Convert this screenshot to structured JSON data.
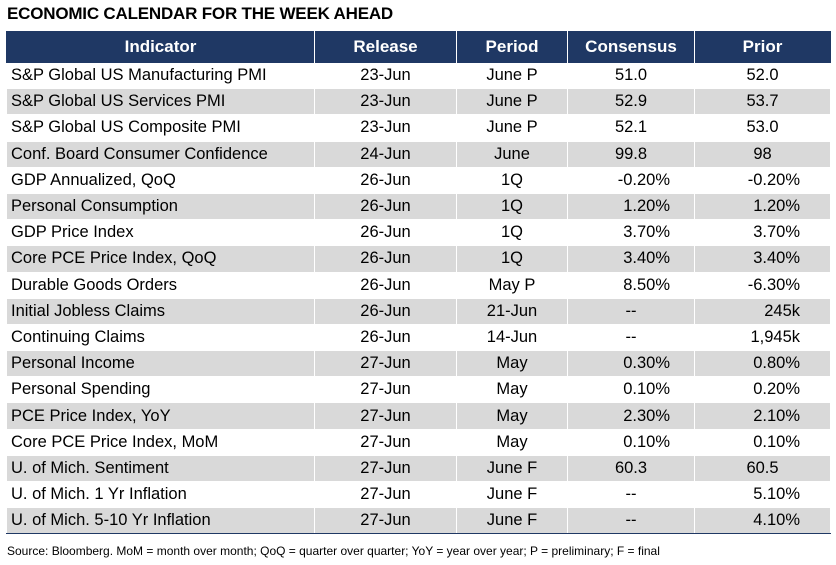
{
  "title": "ECONOMIC CALENDAR FOR THE WEEK AHEAD",
  "columns": [
    "Indicator",
    "Release",
    "Period",
    "Consensus",
    "Prior"
  ],
  "rows": [
    {
      "indicator": "S&P Global US Manufacturing PMI",
      "release": "23-Jun",
      "period": "June P",
      "consensus": "51.0",
      "prior": "52.0"
    },
    {
      "indicator": "S&P Global US Services PMI",
      "release": "23-Jun",
      "period": "June P",
      "consensus": "52.9",
      "prior": "53.7"
    },
    {
      "indicator": "S&P Global US Composite PMI",
      "release": "23-Jun",
      "period": "June P",
      "consensus": "52.1",
      "prior": "53.0"
    },
    {
      "indicator": "Conf. Board Consumer Confidence",
      "release": "24-Jun",
      "period": "June",
      "consensus": "99.8",
      "prior": "98"
    },
    {
      "indicator": "GDP Annualized, QoQ",
      "release": "26-Jun",
      "period": "1Q",
      "consensus": "-0.20%",
      "prior": "-0.20%"
    },
    {
      "indicator": "Personal Consumption",
      "release": "26-Jun",
      "period": "1Q",
      "consensus": "1.20%",
      "prior": "1.20%"
    },
    {
      "indicator": "GDP Price Index",
      "release": "26-Jun",
      "period": "1Q",
      "consensus": "3.70%",
      "prior": "3.70%"
    },
    {
      "indicator": "Core PCE Price Index, QoQ",
      "release": "26-Jun",
      "period": "1Q",
      "consensus": "3.40%",
      "prior": "3.40%"
    },
    {
      "indicator": "Durable Goods Orders",
      "release": "26-Jun",
      "period": "May P",
      "consensus": "8.50%",
      "prior": "-6.30%"
    },
    {
      "indicator": "Initial Jobless Claims",
      "release": "26-Jun",
      "period": "21-Jun",
      "consensus": "--",
      "prior": "245k"
    },
    {
      "indicator": "Continuing Claims",
      "release": "26-Jun",
      "period": "14-Jun",
      "consensus": "--",
      "prior": "1,945k"
    },
    {
      "indicator": "Personal Income",
      "release": "27-Jun",
      "period": "May",
      "consensus": "0.30%",
      "prior": "0.80%"
    },
    {
      "indicator": "Personal Spending",
      "release": "27-Jun",
      "period": "May",
      "consensus": "0.10%",
      "prior": "0.20%"
    },
    {
      "indicator": "PCE Price Index, YoY",
      "release": "27-Jun",
      "period": "May",
      "consensus": "2.30%",
      "prior": "2.10%"
    },
    {
      "indicator": "Core PCE Price Index, MoM",
      "release": "27-Jun",
      "period": "May",
      "consensus": "0.10%",
      "prior": "0.10%"
    },
    {
      "indicator": "U. of Mich. Sentiment",
      "release": "27-Jun",
      "period": "June F",
      "consensus": "60.3",
      "prior": "60.5"
    },
    {
      "indicator": "U. of Mich. 1 Yr Inflation",
      "release": "27-Jun",
      "period": "June F",
      "consensus": "--",
      "prior": "5.10%"
    },
    {
      "indicator": "U. of Mich. 5-10 Yr Inflation",
      "release": "27-Jun",
      "period": "June F",
      "consensus": "--",
      "prior": "4.10%"
    }
  ],
  "source": "Source: Bloomberg. MoM = month over month; QoQ = quarter over quarter; YoY = year over year; P = preliminary; F = final",
  "colors": {
    "header_bg": "#1f3864",
    "header_text": "#ffffff",
    "stripe": "#d9d9d9"
  }
}
